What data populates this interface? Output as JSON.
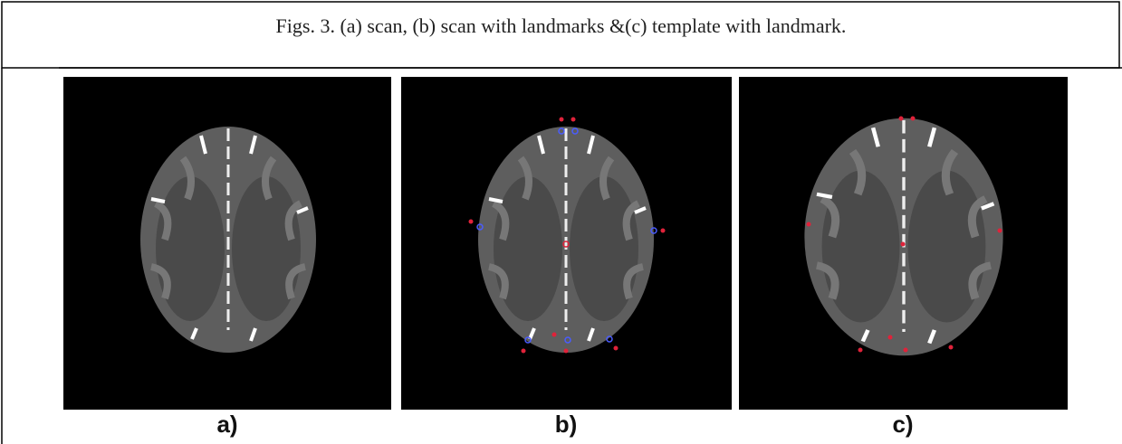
{
  "caption": "Figs. 3. (a) scan, (b) scan with landmarks &(c) template with landmark.",
  "panels": [
    {
      "label": "a)"
    },
    {
      "label": "b)"
    },
    {
      "label": "c)"
    }
  ]
}
